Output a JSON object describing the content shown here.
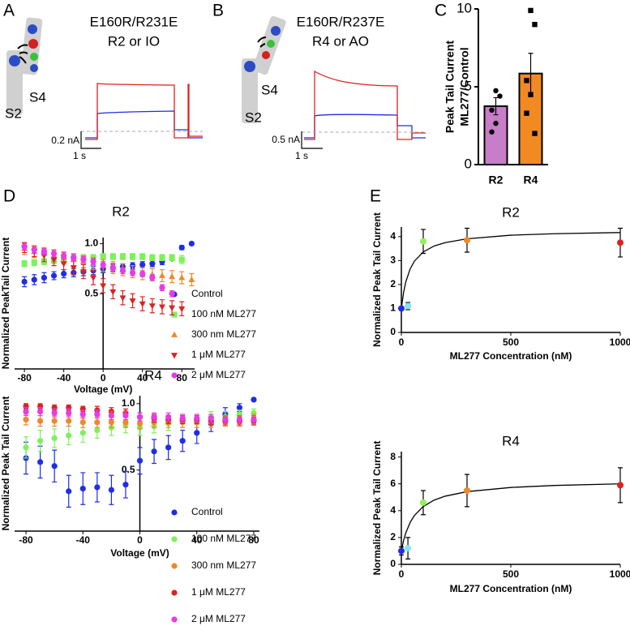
{
  "panels": [
    "A",
    "B",
    "C",
    "D",
    "E"
  ],
  "diagrams": [
    {
      "title": "E160R/R231E",
      "subtitle": "R2 or IO",
      "labels": [
        "S4",
        "S2"
      ],
      "scale_current": "0.2 nA",
      "scale_time": "1 s"
    },
    {
      "title": "E160R/R237E",
      "subtitle": "R4 or AO",
      "labels": [
        "S4",
        "S2"
      ],
      "scale_current": "0.5 nA",
      "scale_time": "1 s"
    }
  ],
  "chart_data": [
    {
      "type": "bar",
      "ylabel": [
        "Peak Tail Current",
        "ML277/Control"
      ],
      "categories": [
        "R2",
        "R4"
      ],
      "values": [
        3.75,
        5.85
      ],
      "errors": [
        0.55,
        1.3
      ],
      "colors": [
        "#c77dc7",
        "#f28a22"
      ],
      "markers": [
        "circle",
        "square"
      ],
      "points": [
        [
          4.75,
          4.4,
          3.5,
          2.65,
          2.1
        ],
        [
          9.9,
          9.0,
          5.4,
          4.5,
          3.3,
          2.0
        ]
      ],
      "ylim": [
        0,
        10
      ],
      "yticks": [
        0,
        5,
        10
      ]
    },
    {
      "type": "scatter",
      "title": "R2",
      "xlabel": "Voltage (mV)",
      "ylabel": "Normalized PeakTail Current",
      "x": [
        -80,
        -70,
        -60,
        -50,
        -40,
        -30,
        -20,
        -10,
        0,
        10,
        20,
        30,
        40,
        50,
        60,
        70,
        80,
        90
      ],
      "series": [
        {
          "name": "Control",
          "color": "#1f2de8",
          "marker": "circle",
          "values": [
            0.62,
            0.64,
            0.66,
            0.68,
            0.7,
            0.71,
            0.72,
            0.73,
            0.75,
            0.76,
            0.77,
            0.78,
            0.79,
            0.8,
            0.82,
            0.85,
            0.96,
            1.0
          ],
          "errors": [
            0.05,
            0.05,
            0.05,
            0.04,
            0.04,
            0.04,
            0.04,
            0.04,
            0.04,
            0.04,
            0.03,
            0.03,
            0.03,
            0.03,
            0.03,
            0.02,
            0.02,
            0.01
          ]
        },
        {
          "name": "100 nM ML277",
          "color": "#7cf25a",
          "marker": "square",
          "values": [
            0.8,
            0.81,
            0.82,
            0.83,
            0.84,
            0.85,
            0.86,
            0.86,
            0.87,
            0.87,
            0.87,
            0.87,
            0.87,
            0.86,
            0.86,
            0.86,
            0.84,
            null
          ],
          "errors": [
            0.03,
            0.03,
            0.03,
            0.03,
            0.03,
            0.03,
            0.03,
            0.03,
            0.03,
            0.03,
            0.03,
            0.03,
            0.03,
            0.03,
            0.03,
            0.03,
            0.04,
            null
          ]
        },
        {
          "name": "300 nm ML277",
          "color": "#f0872a",
          "marker": "triangle",
          "values": [
            0.95,
            0.92,
            0.9,
            0.88,
            0.86,
            0.84,
            0.82,
            0.8,
            0.78,
            0.76,
            0.74,
            0.72,
            0.7,
            0.69,
            0.68,
            0.67,
            0.66,
            0.64
          ],
          "errors": [
            0.06,
            0.06,
            0.06,
            0.06,
            0.06,
            0.06,
            0.06,
            0.06,
            0.06,
            0.06,
            0.06,
            0.06,
            0.06,
            0.06,
            0.06,
            0.06,
            0.06,
            0.06
          ]
        },
        {
          "name": "1 μM ML277",
          "color": "#e02020",
          "marker": "triangle-down",
          "values": [
            0.96,
            0.92,
            0.88,
            0.84,
            0.8,
            0.76,
            0.72,
            0.66,
            0.58,
            0.52,
            0.46,
            0.43,
            0.4,
            0.38,
            0.37,
            0.36,
            0.35,
            null
          ],
          "errors": [
            0.05,
            0.05,
            0.06,
            0.06,
            0.06,
            0.07,
            0.07,
            0.07,
            0.07,
            0.07,
            0.07,
            0.07,
            0.07,
            0.07,
            0.07,
            0.07,
            0.07,
            null
          ]
        },
        {
          "name": "2 μM ML277",
          "color": "#e63ce6",
          "marker": "circle",
          "values": [
            0.97,
            0.94,
            0.92,
            0.9,
            0.88,
            0.86,
            0.84,
            0.82,
            0.79,
            0.76,
            0.73,
            0.71,
            0.7,
            0.66,
            0.56,
            0.5,
            null,
            null
          ],
          "errors": [
            0.03,
            0.03,
            0.03,
            0.03,
            0.03,
            0.03,
            0.03,
            0.03,
            0.03,
            0.03,
            0.03,
            0.03,
            0.03,
            0.03,
            0.03,
            0.03,
            null,
            null
          ]
        }
      ],
      "xlim": [
        -90,
        93
      ],
      "xticks": [
        -80,
        -40,
        0,
        40,
        80
      ],
      "ylim": [
        -0.25,
        1.06
      ],
      "yticks": [
        0.5,
        {
          "value": 1,
          "label": "1.0"
        }
      ]
    },
    {
      "type": "scatter",
      "title": "R4",
      "xlabel": "Voltage (mV)",
      "ylabel": "Normalized Peak Tail Current",
      "x": [
        -80,
        -70,
        -60,
        -50,
        -40,
        -30,
        -20,
        -10,
        0,
        10,
        20,
        30,
        40,
        50,
        60,
        70,
        80
      ],
      "series": [
        {
          "name": "Control",
          "color": "#1f2de8",
          "marker": "circle",
          "values": [
            0.59,
            0.56,
            0.53,
            0.34,
            0.36,
            0.37,
            0.35,
            0.39,
            0.57,
            0.64,
            0.67,
            0.72,
            0.78,
            0.85,
            0.92,
            0.97,
            1.03
          ],
          "errors": [
            0.12,
            0.12,
            0.12,
            0.12,
            0.12,
            0.11,
            0.11,
            0.1,
            0.1,
            0.09,
            0.09,
            0.08,
            0.08,
            0.06,
            0.05,
            0.03,
            0.01
          ]
        },
        {
          "name": "100 nM ML277",
          "color": "#7cf25a",
          "marker": "circle",
          "values": [
            0.67,
            0.72,
            0.74,
            0.76,
            0.78,
            0.8,
            0.82,
            0.84,
            0.82,
            0.83,
            0.85,
            0.87,
            0.88,
            0.9,
            0.9,
            0.92,
            0.93
          ],
          "errors": [
            0.08,
            0.08,
            0.07,
            0.07,
            0.07,
            0.06,
            0.06,
            0.06,
            0.06,
            0.05,
            0.05,
            0.05,
            0.04,
            0.04,
            0.04,
            0.03,
            0.03
          ]
        },
        {
          "name": "300 nm ML277",
          "color": "#f0872a",
          "marker": "circle",
          "values": [
            0.88,
            0.87,
            0.87,
            0.87,
            0.86,
            0.86,
            0.86,
            0.86,
            0.85,
            0.86,
            0.86,
            0.86,
            0.86,
            0.86,
            0.87,
            0.87,
            0.88
          ],
          "errors": [
            0.04,
            0.04,
            0.04,
            0.04,
            0.04,
            0.04,
            0.04,
            0.04,
            0.04,
            0.04,
            0.04,
            0.04,
            0.04,
            0.04,
            0.04,
            0.04,
            0.04
          ]
        },
        {
          "name": "1 μM ML277",
          "color": "#e02020",
          "marker": "circle",
          "values": [
            0.98,
            0.98,
            0.97,
            0.97,
            0.96,
            0.95,
            0.94,
            0.93,
            0.9,
            0.89,
            0.88,
            0.88,
            0.88,
            0.87,
            0.87,
            0.87,
            0.87
          ],
          "errors": [
            0.02,
            0.02,
            0.02,
            0.02,
            0.02,
            0.03,
            0.03,
            0.03,
            0.03,
            0.03,
            0.03,
            0.03,
            0.03,
            0.03,
            0.03,
            0.03,
            0.03
          ]
        },
        {
          "name": "2 μM ML277",
          "color": "#e63ce6",
          "marker": "circle",
          "values": [
            0.94,
            0.94,
            0.93,
            0.93,
            0.92,
            0.92,
            0.91,
            0.91,
            0.9,
            0.9,
            0.9,
            0.89,
            0.89,
            0.89,
            0.88,
            0.88,
            0.88
          ],
          "errors": [
            0.03,
            0.03,
            0.03,
            0.03,
            0.03,
            0.03,
            0.03,
            0.03,
            0.03,
            0.03,
            0.03,
            0.03,
            0.03,
            0.03,
            0.03,
            0.03,
            0.03
          ]
        }
      ],
      "xlim": [
        -88,
        84
      ],
      "xticks": [
        -80,
        -40,
        0,
        40,
        80
      ],
      "ylim": [
        0.04,
        1.06
      ],
      "yticks": [
        0.5,
        {
          "value": 1,
          "label": "1.0"
        }
      ]
    },
    {
      "type": "errorbar",
      "title": "R2",
      "xlabel": "ML277 Concentration (nM)",
      "ylabel": "Normalized Peak Tail Current",
      "x": [
        0,
        30,
        100,
        300,
        1000
      ],
      "values": [
        1.0,
        1.1,
        3.8,
        3.85,
        3.75
      ],
      "errors": [
        0.05,
        0.15,
        0.5,
        0.5,
        0.6
      ],
      "colors": [
        "#1f2de8",
        "#7fe6f2",
        "#8ef25a",
        "#f0872a",
        "#e02020"
      ],
      "fit": {
        "x": [
          0,
          10,
          20,
          40,
          60,
          100,
          150,
          200,
          300,
          500,
          700,
          1000
        ],
        "y": [
          1,
          1.66,
          2.1,
          2.65,
          2.98,
          3.36,
          3.61,
          3.75,
          3.91,
          4.06,
          4.12,
          4.17
        ]
      },
      "xlim": [
        0,
        1000
      ],
      "xticks": [
        0,
        500,
        1000
      ],
      "ylim": [
        0,
        4.4
      ],
      "yticks": [
        0,
        1,
        2,
        3,
        4
      ]
    },
    {
      "type": "errorbar",
      "title": "R4",
      "xlabel": "ML277 Concentration (nM)",
      "ylabel": "Normalized Peak Tail Current",
      "x": [
        0,
        30,
        100,
        300,
        1000
      ],
      "values": [
        1.0,
        1.2,
        4.6,
        5.5,
        5.9
      ],
      "errors": [
        0.3,
        0.8,
        0.9,
        1.2,
        1.3
      ],
      "colors": [
        "#1f2de8",
        "#7fe6f2",
        "#8ef25a",
        "#f0872a",
        "#e02020"
      ],
      "fit": {
        "x": [
          0,
          10,
          20,
          40,
          60,
          100,
          150,
          200,
          300,
          500,
          700,
          1000
        ],
        "y": [
          1,
          1.76,
          2.33,
          3.12,
          3.65,
          4.31,
          4.79,
          5.08,
          5.42,
          5.73,
          5.88,
          6.0
        ]
      },
      "xlim": [
        0,
        1000
      ],
      "xticks": [
        0,
        500,
        1000
      ],
      "ylim": [
        0,
        8.4
      ],
      "yticks": [
        0,
        2,
        4,
        6,
        8
      ]
    }
  ]
}
